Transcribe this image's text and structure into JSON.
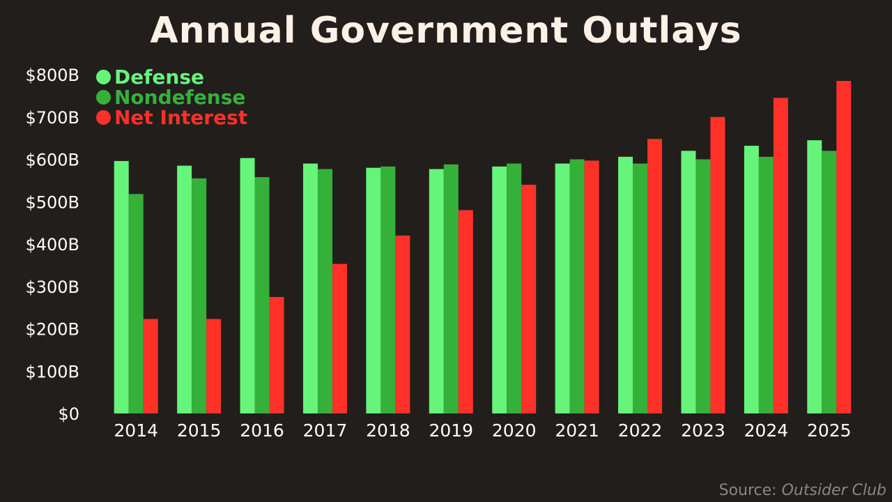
{
  "title": "Annual Government Outlays",
  "source": {
    "label": "Source:",
    "name": "Outsider Club"
  },
  "colors": {
    "background": "#221e1c",
    "defense": "#66f57a",
    "nondefense": "#35b13a",
    "net_interest": "#ff3128",
    "axis_text": "#ffffff"
  },
  "chart_data": {
    "type": "bar",
    "title": "Annual Government Outlays",
    "xlabel": "",
    "ylabel": "",
    "categories": [
      "2014",
      "2015",
      "2016",
      "2017",
      "2018",
      "2019",
      "2020",
      "2021",
      "2022",
      "2023",
      "2024",
      "2025"
    ],
    "series": [
      {
        "name": "Defense",
        "color": "#66f57a",
        "values": [
          596,
          585,
          603,
          590,
          580,
          577,
          583,
          590,
          606,
          620,
          632,
          645
        ]
      },
      {
        "name": "Nondefense",
        "color": "#35b13a",
        "values": [
          518,
          555,
          558,
          577,
          583,
          588,
          590,
          600,
          590,
          600,
          606,
          620
        ]
      },
      {
        "name": "Net Interest",
        "color": "#ff3128",
        "values": [
          223,
          223,
          275,
          353,
          420,
          480,
          540,
          597,
          648,
          700,
          745,
          785
        ]
      }
    ],
    "ylim": [
      0,
      800
    ],
    "yticks": [
      0,
      100,
      200,
      300,
      400,
      500,
      600,
      700,
      800
    ],
    "ytick_labels": [
      "$0",
      "$100B",
      "$200B",
      "$300B",
      "$400B",
      "$500B",
      "$600B",
      "$700B",
      "$800B"
    ],
    "grid": false,
    "legend_position": "top-left"
  }
}
